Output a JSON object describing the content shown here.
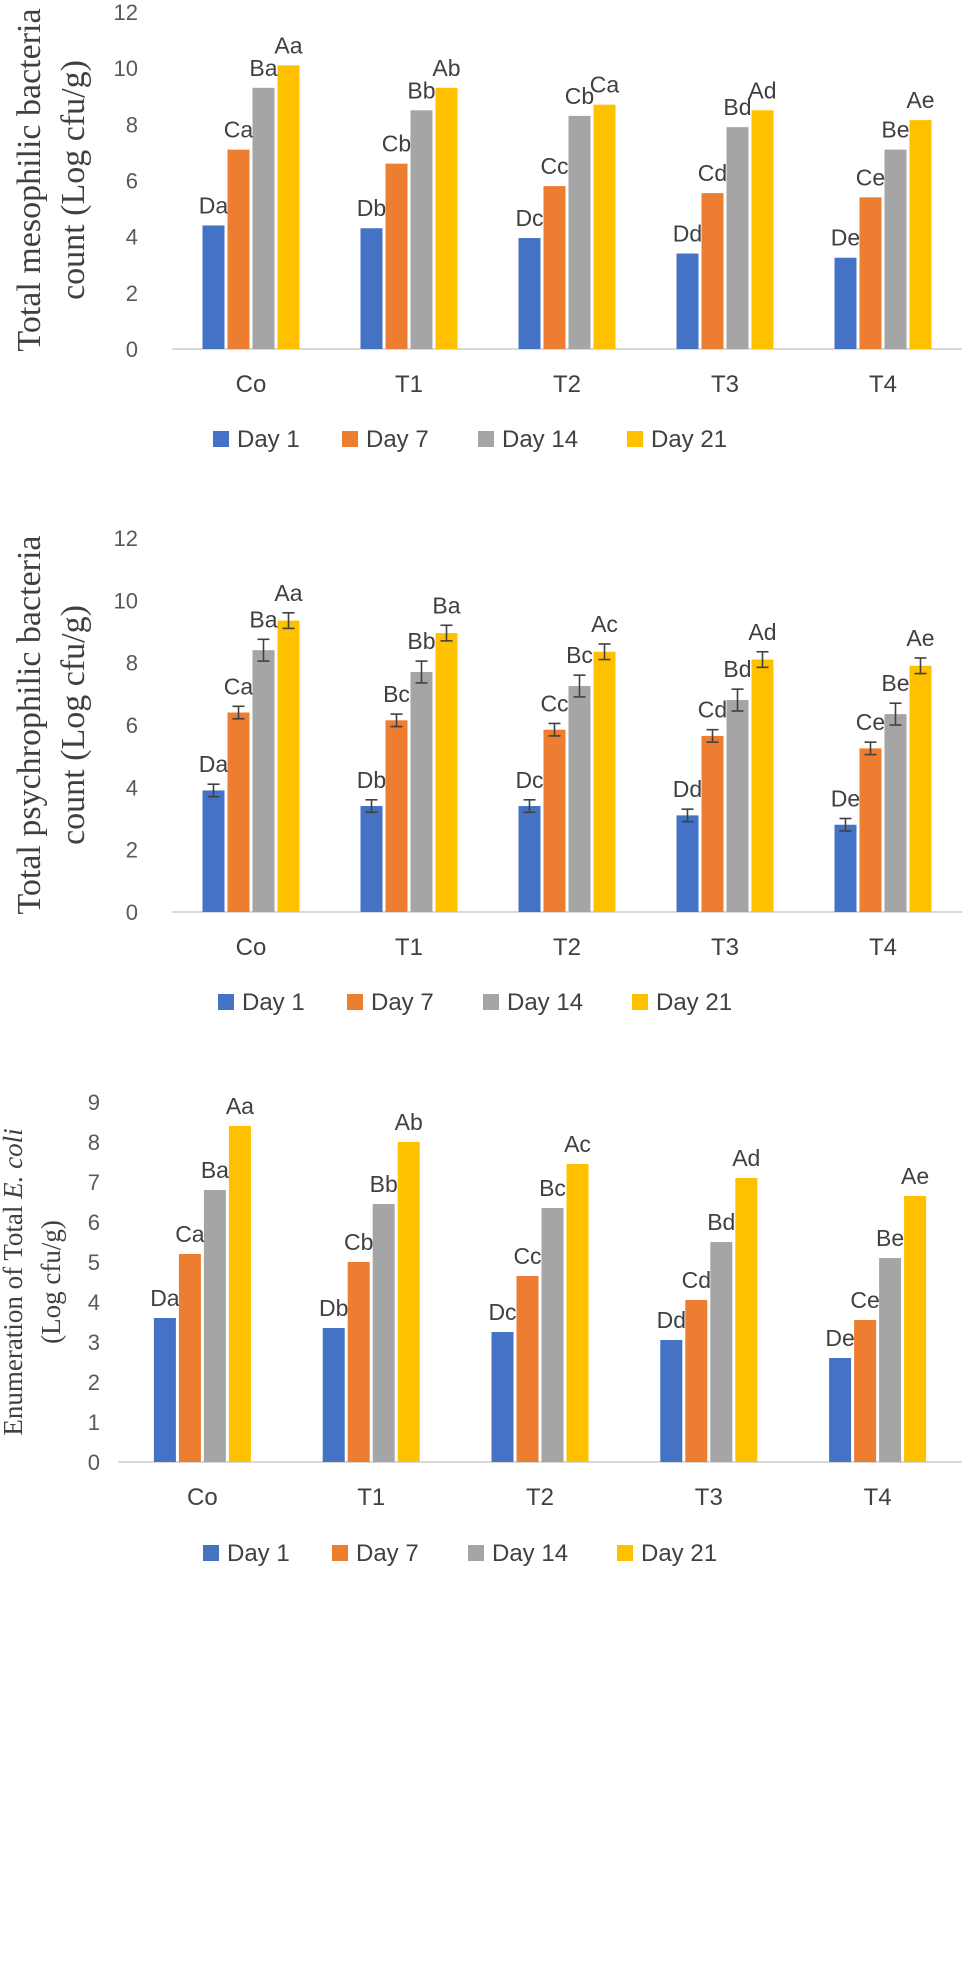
{
  "chart_data": [
    {
      "type": "bar",
      "title": "",
      "ylabel_lines": [
        "Total mesophilic bacteria",
        "count (Log cfu/g)"
      ],
      "ylim": [
        0,
        12
      ],
      "yticks": [
        0,
        2,
        4,
        6,
        8,
        10,
        12
      ],
      "categories": [
        "Co",
        "T1",
        "T2",
        "T3",
        "T4"
      ],
      "error_bars": false,
      "series": [
        {
          "name": "Day 1",
          "color": "#4472C4",
          "values": [
            4.4,
            4.3,
            3.95,
            3.4,
            3.25
          ],
          "labels": [
            "Da",
            "Db",
            "Dc",
            "Dd",
            "De"
          ]
        },
        {
          "name": "Day 7",
          "color": "#ED7D31",
          "values": [
            7.1,
            6.6,
            5.8,
            5.55,
            5.4
          ],
          "labels": [
            "Ca",
            "Cb",
            "Cc",
            "Cd",
            "Ce"
          ]
        },
        {
          "name": "Day 14",
          "color": "#A5A5A5",
          "values": [
            9.3,
            8.5,
            8.3,
            7.9,
            7.1
          ],
          "labels": [
            "Ba",
            "Bb",
            "Cb",
            "Bd",
            "Be"
          ]
        },
        {
          "name": "Day 21",
          "color": "#FFC000",
          "values": [
            10.1,
            9.3,
            8.7,
            8.5,
            8.15
          ],
          "labels": [
            "Aa",
            "Ab",
            "Ca",
            "Ad",
            "Ae"
          ]
        }
      ],
      "legend": [
        "Day 1",
        "Day 7",
        "Day 14",
        "Day 21"
      ]
    },
    {
      "type": "bar",
      "title": "",
      "ylabel_lines": [
        "Total psychrophilic bacteria",
        "count (Log cfu/g)"
      ],
      "ylim": [
        0,
        12
      ],
      "yticks": [
        0,
        2,
        4,
        6,
        8,
        10,
        12
      ],
      "categories": [
        "Co",
        "T1",
        "T2",
        "T3",
        "T4"
      ],
      "error_bars": true,
      "series": [
        {
          "name": "Day 1",
          "color": "#4472C4",
          "values": [
            3.9,
            3.4,
            3.4,
            3.1,
            2.8
          ],
          "errors": [
            0.2,
            0.2,
            0.2,
            0.2,
            0.2
          ],
          "labels": [
            "Da",
            "Db",
            "Dc",
            "Dd",
            "De"
          ]
        },
        {
          "name": "Day 7",
          "color": "#ED7D31",
          "values": [
            6.4,
            6.15,
            5.85,
            5.65,
            5.25
          ],
          "errors": [
            0.2,
            0.2,
            0.2,
            0.2,
            0.2
          ],
          "labels": [
            "Ca",
            "Bc",
            "Cc",
            "Cd",
            "Ce"
          ]
        },
        {
          "name": "Day 14",
          "color": "#A5A5A5",
          "values": [
            8.4,
            7.7,
            7.25,
            6.8,
            6.35
          ],
          "errors": [
            0.35,
            0.35,
            0.35,
            0.35,
            0.35
          ],
          "labels": [
            "Ba",
            "Bb",
            "Bc",
            "Bd",
            "Be"
          ]
        },
        {
          "name": "Day 21",
          "color": "#FFC000",
          "values": [
            9.35,
            8.95,
            8.35,
            8.1,
            7.9
          ],
          "errors": [
            0.25,
            0.25,
            0.25,
            0.25,
            0.25
          ],
          "labels": [
            "Aa",
            "Ba",
            "Ac",
            "Ad",
            "Ae"
          ]
        }
      ],
      "legend": [
        "Day 1",
        "Day 7",
        "Day 14",
        "Day 21"
      ]
    },
    {
      "type": "bar",
      "title": "",
      "ylabel_lines": [
        "Enumeration of Total E. coli",
        "(Log cfu/g)"
      ],
      "ylabel_prefix": "Enumeration of Total ",
      "ylabel_italic": "E. coli",
      "ylim": [
        0,
        9
      ],
      "yticks": [
        0,
        1,
        2,
        3,
        4,
        5,
        6,
        7,
        8,
        9
      ],
      "categories": [
        "Co",
        "T1",
        "T2",
        "T3",
        "T4"
      ],
      "error_bars": false,
      "series": [
        {
          "name": "Day 1",
          "color": "#4472C4",
          "values": [
            3.6,
            3.35,
            3.25,
            3.05,
            2.6
          ],
          "labels": [
            "Da",
            "Db",
            "Dc",
            "Dd",
            "De"
          ]
        },
        {
          "name": "Day 7",
          "color": "#ED7D31",
          "values": [
            5.2,
            5.0,
            4.65,
            4.05,
            3.55
          ],
          "labels": [
            "Ca",
            "Cb",
            "Cc",
            "Cd",
            "Ce"
          ]
        },
        {
          "name": "Day 14",
          "color": "#A5A5A5",
          "values": [
            6.8,
            6.45,
            6.35,
            5.5,
            5.1
          ],
          "labels": [
            "Ba",
            "Bb",
            "Bc",
            "Bd",
            "Be"
          ]
        },
        {
          "name": "Day 21",
          "color": "#FFC000",
          "values": [
            8.4,
            8.0,
            7.45,
            7.1,
            6.65
          ],
          "labels": [
            "Aa",
            "Ab",
            "Ac",
            "Ad",
            "Ae"
          ]
        }
      ],
      "legend": [
        "Day 1",
        "Day 7",
        "Day 14",
        "Day 21"
      ]
    }
  ]
}
